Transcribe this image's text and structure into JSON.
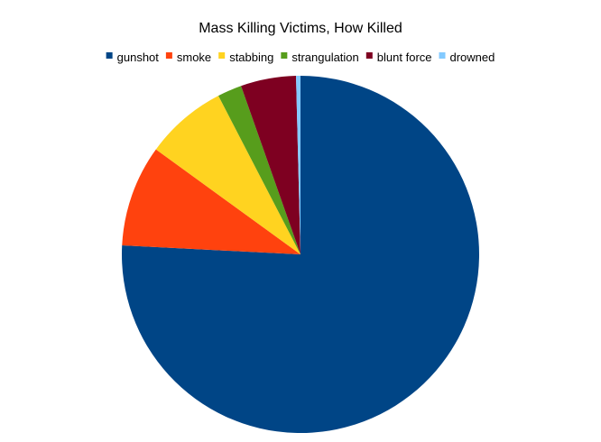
{
  "chart_data": {
    "type": "pie",
    "title": "Mass Killing Victims, How Killed",
    "legend_position": "top",
    "start_angle_deg": 0,
    "direction": "clockwise",
    "slices": [
      {
        "label": "gunshot",
        "value": 75.8,
        "color": "#004586"
      },
      {
        "label": "smoke",
        "value": 9.2,
        "color": "#ff420e"
      },
      {
        "label": "stabbing",
        "value": 7.4,
        "color": "#ffd320"
      },
      {
        "label": "strangulation",
        "value": 2.2,
        "color": "#579d1c"
      },
      {
        "label": "blunt force",
        "value": 5.0,
        "color": "#7e0021"
      },
      {
        "label": "drowned",
        "value": 0.4,
        "color": "#83caff"
      }
    ]
  }
}
